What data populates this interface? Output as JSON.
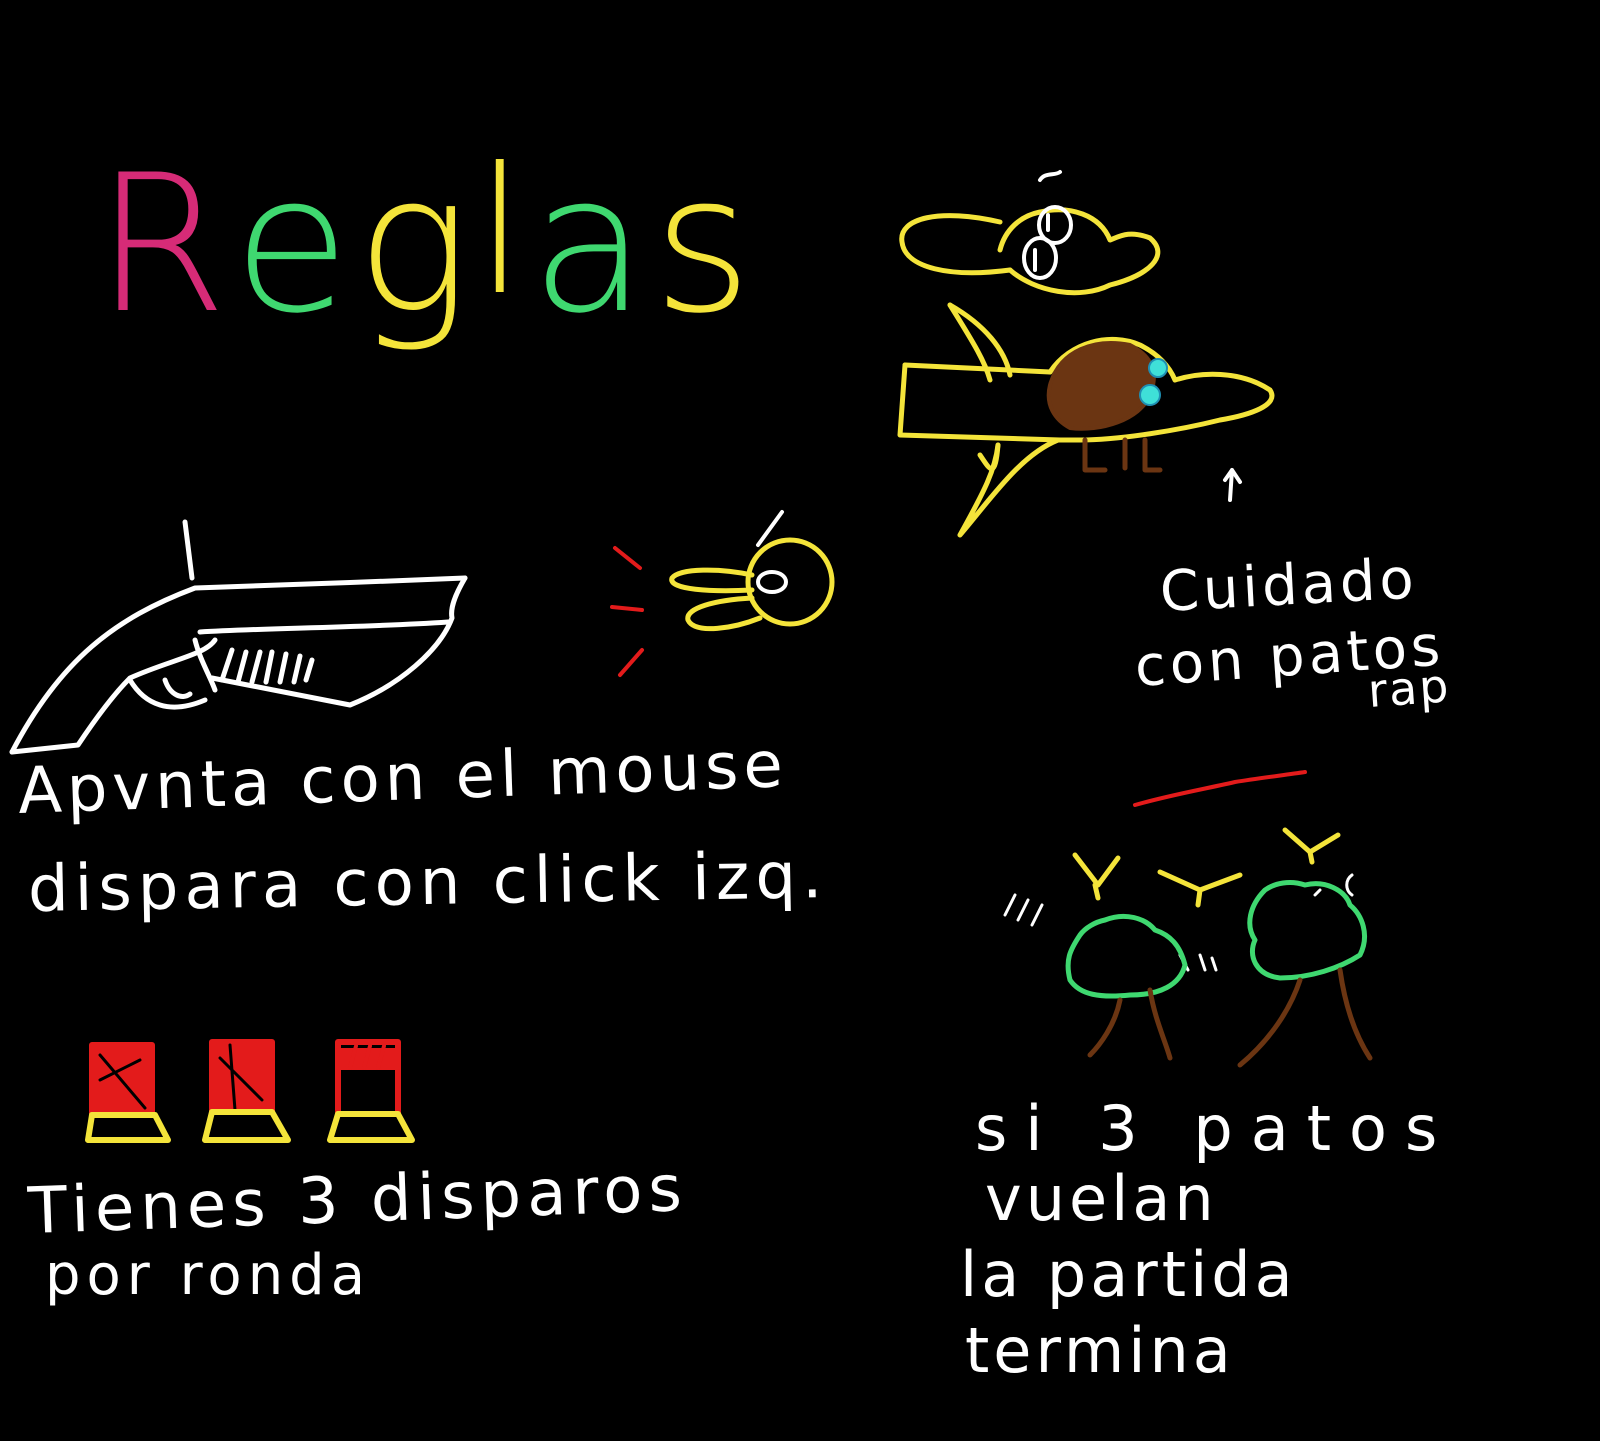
{
  "title": {
    "letters": [
      "R",
      "e",
      "g",
      "l",
      "a",
      "s"
    ],
    "colors": [
      "#d62b77",
      "#3fd870",
      "#f4e43a",
      "#f4e43a",
      "#3fd870",
      "#f4e43a"
    ]
  },
  "rules": {
    "aim_line": "Apvnta con el mouse",
    "shoot_line": "dispara con click izq.",
    "shots_line": "Tienes 3 disparos",
    "round_line": "por ronda",
    "shells_count": 3
  },
  "warning": {
    "line1": "Cuidado",
    "line2": "con patos",
    "line3": "rap"
  },
  "game_over": {
    "line1": "si 3 patos",
    "line2": "vuelan",
    "line3": "la partida",
    "line4": "termina"
  },
  "colors": {
    "background": "#000000",
    "chalk_white": "#ffffff",
    "duck_yellow": "#f4e43a",
    "blast_red": "#e31b1b",
    "tree_green": "#3fd870",
    "trunk_brown": "#6b3512",
    "eye_cyan": "#3fe0d8"
  }
}
